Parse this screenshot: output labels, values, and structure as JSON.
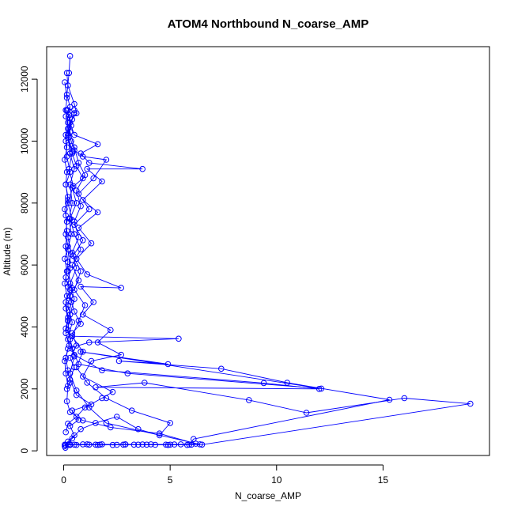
{
  "chart_data": {
    "type": "scatter",
    "title": "ATOM4 Northbound N_coarse_AMP",
    "xlabel": "N_coarse_AMP",
    "ylabel": "Altitude (m)",
    "xlim": [
      -0.8,
      20.0
    ],
    "ylim": [
      -150,
      13050
    ],
    "x_ticks": [
      0,
      5,
      10,
      15
    ],
    "x_tick_labels": [
      "0",
      "5",
      "10",
      "15"
    ],
    "y_ticks": [
      0,
      2000,
      4000,
      6000,
      8000,
      10000,
      12000
    ],
    "y_tick_labels": [
      "0",
      "2000",
      "4000",
      "6000",
      "8000",
      "10000",
      "12000"
    ],
    "grid": false,
    "legend": "none",
    "color": "#0000ff",
    "marker": "open-circle",
    "connected": true,
    "series": [
      {
        "values": [
          [
            0.05,
            200
          ],
          [
            0.3,
            210
          ],
          [
            0.6,
            190
          ],
          [
            1.2,
            200
          ],
          [
            1.8,
            210
          ],
          [
            2.5,
            195
          ],
          [
            3.3,
            200
          ],
          [
            4.1,
            210
          ],
          [
            5.0,
            200
          ],
          [
            5.8,
            190
          ],
          [
            6.2,
            230
          ],
          [
            4.5,
            560
          ],
          [
            2.2,
            760
          ],
          [
            0.9,
            980
          ],
          [
            0.3,
            1250
          ],
          [
            0.15,
            1600
          ],
          [
            0.2,
            2100
          ],
          [
            0.1,
            2500
          ],
          [
            0.05,
            2900
          ],
          [
            0.2,
            3300
          ],
          [
            1.2,
            3500
          ],
          [
            5.4,
            3620
          ],
          [
            0.4,
            3700
          ],
          [
            0.1,
            3950
          ],
          [
            0.2,
            4300
          ],
          [
            0.1,
            4800
          ],
          [
            0.3,
            5200
          ],
          [
            0.1,
            5600
          ],
          [
            0.2,
            6100
          ],
          [
            0.1,
            6600
          ],
          [
            0.15,
            7100
          ],
          [
            0.1,
            7600
          ],
          [
            0.2,
            8100
          ],
          [
            0.1,
            8600
          ],
          [
            0.3,
            9000
          ],
          [
            0.15,
            9500
          ],
          [
            0.1,
            10000
          ],
          [
            0.2,
            10400
          ],
          [
            0.1,
            10800
          ],
          [
            0.3,
            11100
          ],
          [
            0.15,
            11500
          ],
          [
            0.25,
            12200
          ],
          [
            0.3,
            12750
          ]
        ]
      },
      {
        "values": [
          [
            0.2,
            200
          ],
          [
            0.9,
            210
          ],
          [
            1.6,
            190
          ],
          [
            2.8,
            200
          ],
          [
            3.7,
            205
          ],
          [
            4.8,
            200
          ],
          [
            5.5,
            210
          ],
          [
            6.5,
            200
          ],
          [
            19.1,
            1520
          ],
          [
            16.0,
            1700
          ],
          [
            11.4,
            1230
          ],
          [
            8.7,
            1640
          ],
          [
            3.8,
            2200
          ],
          [
            1.5,
            2050
          ],
          [
            12.0,
            2000
          ],
          [
            9.4,
            2190
          ],
          [
            1.8,
            2600
          ],
          [
            0.5,
            3100
          ],
          [
            0.3,
            3600
          ],
          [
            0.2,
            4200
          ],
          [
            0.35,
            4800
          ],
          [
            0.2,
            5300
          ],
          [
            0.3,
            5900
          ],
          [
            0.2,
            6500
          ],
          [
            0.35,
            7000
          ],
          [
            0.25,
            7500
          ],
          [
            0.4,
            8000
          ],
          [
            0.3,
            8600
          ],
          [
            0.5,
            9100
          ],
          [
            0.3,
            9600
          ],
          [
            0.2,
            10200
          ],
          [
            0.4,
            10700
          ],
          [
            0.6,
            10900
          ],
          [
            0.5,
            11200
          ],
          [
            0.2,
            11800
          ],
          [
            0.15,
            12200
          ]
        ]
      },
      {
        "values": [
          [
            0.3,
            190
          ],
          [
            1.5,
            200
          ],
          [
            2.9,
            210
          ],
          [
            3.9,
            200
          ],
          [
            4.9,
            190
          ],
          [
            5.9,
            200
          ],
          [
            6.1,
            380
          ],
          [
            15.3,
            1650
          ],
          [
            10.5,
            2200
          ],
          [
            7.4,
            2650
          ],
          [
            2.6,
            2900
          ],
          [
            4.9,
            2800
          ],
          [
            0.8,
            3200
          ],
          [
            12.1,
            2010
          ],
          [
            3.0,
            2500
          ],
          [
            0.7,
            2800
          ],
          [
            0.4,
            3300
          ],
          [
            0.2,
            3900
          ],
          [
            0.3,
            4400
          ],
          [
            0.5,
            4900
          ],
          [
            0.3,
            5400
          ],
          [
            0.6,
            5900
          ],
          [
            0.4,
            6400
          ],
          [
            0.7,
            6900
          ],
          [
            0.5,
            7400
          ],
          [
            0.8,
            7900
          ],
          [
            0.6,
            8400
          ],
          [
            1.0,
            8900
          ],
          [
            0.7,
            9300
          ],
          [
            0.5,
            9800
          ],
          [
            0.3,
            10300
          ],
          [
            0.25,
            10850
          ],
          [
            0.5,
            11000
          ]
        ]
      },
      {
        "values": [
          [
            0.1,
            600
          ],
          [
            0.2,
            880
          ],
          [
            0.6,
            1100
          ],
          [
            1.0,
            1400
          ],
          [
            1.8,
            1700
          ],
          [
            2.3,
            1900
          ],
          [
            0.9,
            2400
          ],
          [
            1.3,
            2900
          ],
          [
            2.7,
            3100
          ],
          [
            1.6,
            3500
          ],
          [
            2.2,
            3900
          ],
          [
            0.9,
            4400
          ],
          [
            1.4,
            4800
          ],
          [
            0.8,
            5300
          ],
          [
            2.7,
            5260
          ],
          [
            1.1,
            5700
          ],
          [
            0.6,
            6200
          ],
          [
            1.3,
            6700
          ],
          [
            0.7,
            7200
          ],
          [
            1.6,
            7700
          ],
          [
            0.9,
            8100
          ],
          [
            1.8,
            8700
          ],
          [
            1.1,
            9100
          ],
          [
            3.7,
            9100
          ],
          [
            1.2,
            9300
          ],
          [
            0.8,
            9600
          ],
          [
            1.6,
            9900
          ],
          [
            0.5,
            10200
          ],
          [
            0.3,
            10600
          ],
          [
            0.15,
            11000
          ]
        ]
      },
      {
        "values": [
          [
            0.05,
            150
          ],
          [
            0.4,
            400
          ],
          [
            0.8,
            700
          ],
          [
            1.5,
            900
          ],
          [
            2.5,
            1100
          ],
          [
            3.5,
            700
          ],
          [
            4.5,
            500
          ],
          [
            5.0,
            900
          ],
          [
            3.2,
            1300
          ],
          [
            2.0,
            1700
          ],
          [
            1.1,
            2200
          ],
          [
            0.6,
            2700
          ],
          [
            0.9,
            3200
          ],
          [
            0.4,
            3700
          ],
          [
            0.7,
            4200
          ],
          [
            1.0,
            4700
          ],
          [
            0.5,
            5200
          ],
          [
            0.8,
            5800
          ],
          [
            0.45,
            6300
          ],
          [
            0.9,
            6800
          ],
          [
            0.5,
            7300
          ],
          [
            1.2,
            7800
          ],
          [
            0.7,
            8300
          ],
          [
            1.4,
            8800
          ],
          [
            2.0,
            9400
          ],
          [
            0.9,
            9500
          ],
          [
            0.5,
            9700
          ],
          [
            0.35,
            10000
          ],
          [
            0.2,
            10400
          ],
          [
            0.5,
            10900
          ]
        ]
      },
      {
        "values": [
          [
            0.08,
            100
          ],
          [
            0.2,
            300
          ],
          [
            0.5,
            500
          ],
          [
            0.3,
            800
          ],
          [
            0.7,
            1000
          ],
          [
            0.4,
            1300
          ],
          [
            1.3,
            1500
          ],
          [
            0.6,
            1800
          ],
          [
            0.3,
            2300
          ],
          [
            0.5,
            2700
          ],
          [
            0.3,
            3000
          ],
          [
            0.6,
            3400
          ],
          [
            0.4,
            3800
          ],
          [
            0.8,
            4100
          ],
          [
            0.5,
            4500
          ],
          [
            0.3,
            5000
          ],
          [
            0.7,
            5500
          ],
          [
            0.4,
            6000
          ],
          [
            0.8,
            6500
          ],
          [
            0.5,
            7000
          ],
          [
            0.3,
            7500
          ],
          [
            0.6,
            8000
          ],
          [
            0.4,
            8500
          ],
          [
            0.9,
            8800
          ],
          [
            0.6,
            9200
          ],
          [
            0.4,
            9600
          ],
          [
            0.2,
            10100
          ],
          [
            0.35,
            10500
          ],
          [
            0.2,
            11000
          ]
        ]
      },
      {
        "values": [
          [
            0.1,
            190
          ],
          [
            0.5,
            200
          ],
          [
            1.1,
            210
          ],
          [
            1.7,
            200
          ],
          [
            2.3,
            190
          ],
          [
            2.9,
            205
          ],
          [
            3.5,
            200
          ],
          [
            4.3,
            195
          ],
          [
            5.2,
            205
          ],
          [
            6.0,
            200
          ],
          [
            6.4,
            210
          ],
          [
            2.0,
            900
          ],
          [
            1.2,
            1400
          ],
          [
            0.6,
            1950
          ],
          [
            0.3,
            2500
          ],
          [
            0.5,
            3050
          ],
          [
            0.2,
            3600
          ],
          [
            0.4,
            4150
          ],
          [
            0.2,
            4700
          ],
          [
            0.4,
            5250
          ],
          [
            0.2,
            5800
          ],
          [
            0.35,
            6350
          ],
          [
            0.2,
            6900
          ],
          [
            0.4,
            7450
          ],
          [
            0.2,
            8000
          ],
          [
            0.45,
            8550
          ],
          [
            0.25,
            9100
          ],
          [
            0.4,
            9650
          ],
          [
            0.2,
            10200
          ],
          [
            0.3,
            10750
          ]
        ]
      },
      {
        "values": [
          [
            0.15,
            2000
          ],
          [
            0.3,
            2200
          ],
          [
            0.2,
            2600
          ],
          [
            0.1,
            3000
          ],
          [
            0.25,
            3400
          ],
          [
            0.1,
            3800
          ],
          [
            0.2,
            4200
          ],
          [
            0.1,
            4600
          ],
          [
            0.15,
            5000
          ],
          [
            0.05,
            5400
          ],
          [
            0.15,
            5800
          ],
          [
            0.05,
            6200
          ],
          [
            0.2,
            6600
          ],
          [
            0.1,
            7000
          ],
          [
            0.15,
            7400
          ],
          [
            0.05,
            7800
          ],
          [
            0.2,
            8200
          ],
          [
            0.1,
            8600
          ],
          [
            0.15,
            9000
          ],
          [
            0.05,
            9400
          ],
          [
            0.15,
            9800
          ],
          [
            0.1,
            10200
          ],
          [
            0.2,
            10600
          ],
          [
            0.1,
            11000
          ],
          [
            0.15,
            11400
          ],
          [
            0.05,
            11900
          ]
        ]
      }
    ]
  }
}
